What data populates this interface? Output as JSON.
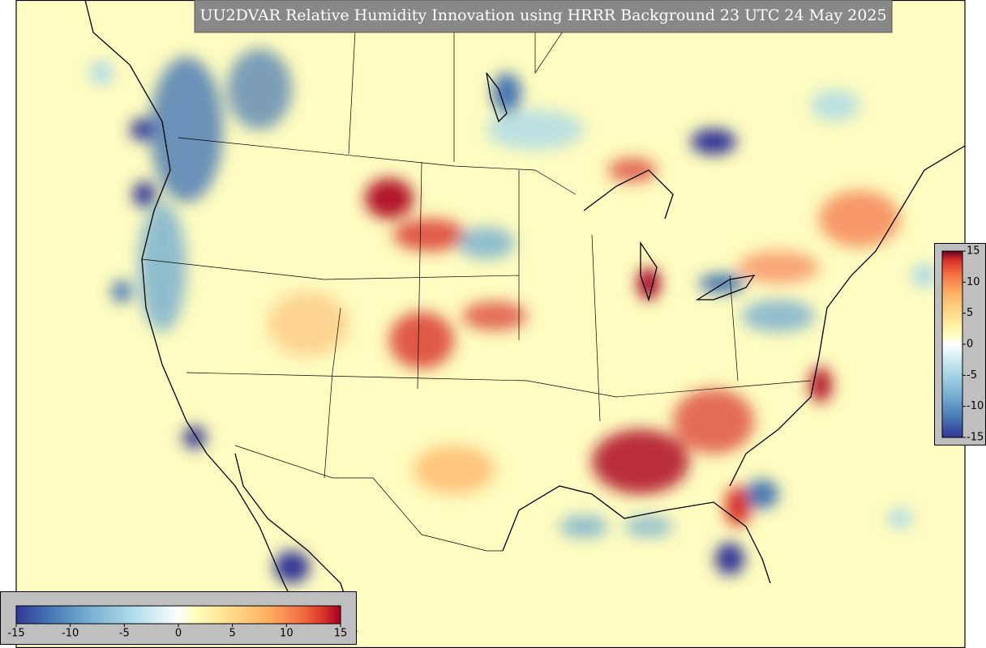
{
  "title": "UU2DVAR Relative Humidity Innovation using HRRR Background 23 UTC 24 May 2025",
  "colorbar_bottom": {
    "ticks": [
      -15,
      -10,
      -5,
      0,
      5,
      10,
      15
    ]
  },
  "colorbar_right": {
    "ticks": [
      15,
      10,
      5,
      0,
      -5,
      -10,
      -15
    ]
  }
}
